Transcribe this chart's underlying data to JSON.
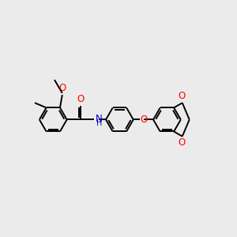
{
  "bg_color": "#ebebeb",
  "bond_color": "#000000",
  "o_color": "#ff0000",
  "n_color": "#0000cd",
  "c_color": "#000000",
  "line_width": 1.4,
  "font_size": 8.5,
  "fig_size": [
    3.0,
    3.0
  ],
  "dpi": 100,
  "ring_r": 0.62,
  "xlim": [
    0,
    10.5
  ],
  "ylim": [
    0,
    10.5
  ]
}
